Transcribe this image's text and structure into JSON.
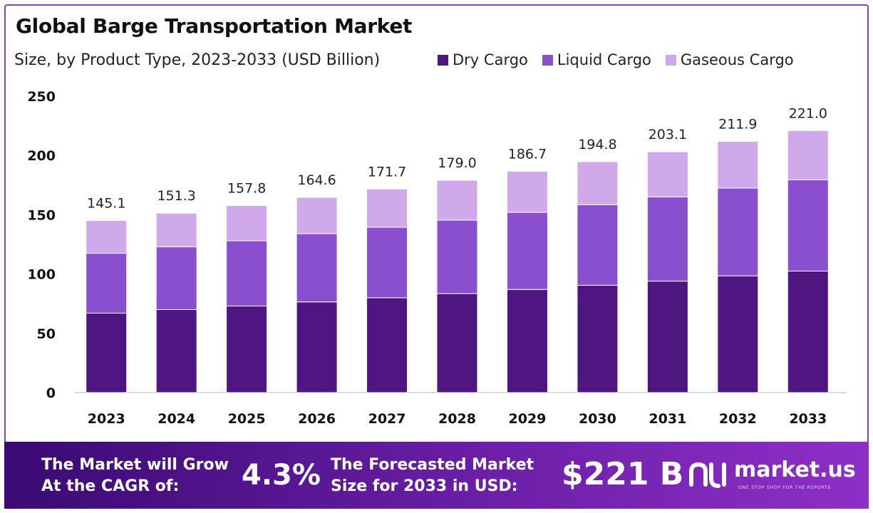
{
  "title": "Global Barge Transportation  Market",
  "subtitle": "Size, by Product Type, 2023-2033 (USD Billion)",
  "legend": [
    {
      "label": "Dry Cargo",
      "color": "#4f1580"
    },
    {
      "label": "Liquid Cargo",
      "color": "#8a4fcf"
    },
    {
      "label": "Gaseous Cargo",
      "color": "#d0a9eb"
    }
  ],
  "chart_data": {
    "type": "bar",
    "stacked": true,
    "categories": [
      "2023",
      "2024",
      "2025",
      "2026",
      "2027",
      "2028",
      "2029",
      "2030",
      "2031",
      "2032",
      "2033"
    ],
    "series": [
      {
        "name": "Dry Cargo",
        "color": "#4f1580",
        "values": [
          67,
          70,
          73,
          76.5,
          80,
          83.5,
          87,
          90.5,
          94,
          98.5,
          102.5
        ]
      },
      {
        "name": "Liquid Cargo",
        "color": "#8a4fcf",
        "values": [
          50.5,
          53,
          55,
          57.5,
          59.5,
          62,
          65,
          68,
          71,
          74,
          77
        ]
      },
      {
        "name": "Gaseous Cargo",
        "color": "#d0a9eb",
        "values": [
          27.6,
          28.3,
          29.8,
          30.6,
          32.2,
          33.5,
          34.7,
          36.3,
          38.1,
          39.4,
          41.5
        ]
      }
    ],
    "totals": [
      "145.1",
      "151.3",
      "157.8",
      "164.6",
      "171.7",
      "179.0",
      "186.7",
      "194.8",
      "203.1",
      "211.9",
      "221.0"
    ],
    "ylim": [
      0,
      250
    ],
    "yticks": [
      0,
      50,
      100,
      150,
      200,
      250
    ],
    "grid": false
  },
  "footer": {
    "cagr_text_1": "The Market will Grow",
    "cagr_text_2": "At the CAGR of:",
    "cagr_value": "4.3%",
    "forecast_text_1": "The Forecasted Market",
    "forecast_text_2": "Size for 2033 in USD:",
    "forecast_value": "$221 B",
    "brand": "market.us",
    "brand_tagline": "ONE STOP SHOP FOR THE REPORTS"
  }
}
